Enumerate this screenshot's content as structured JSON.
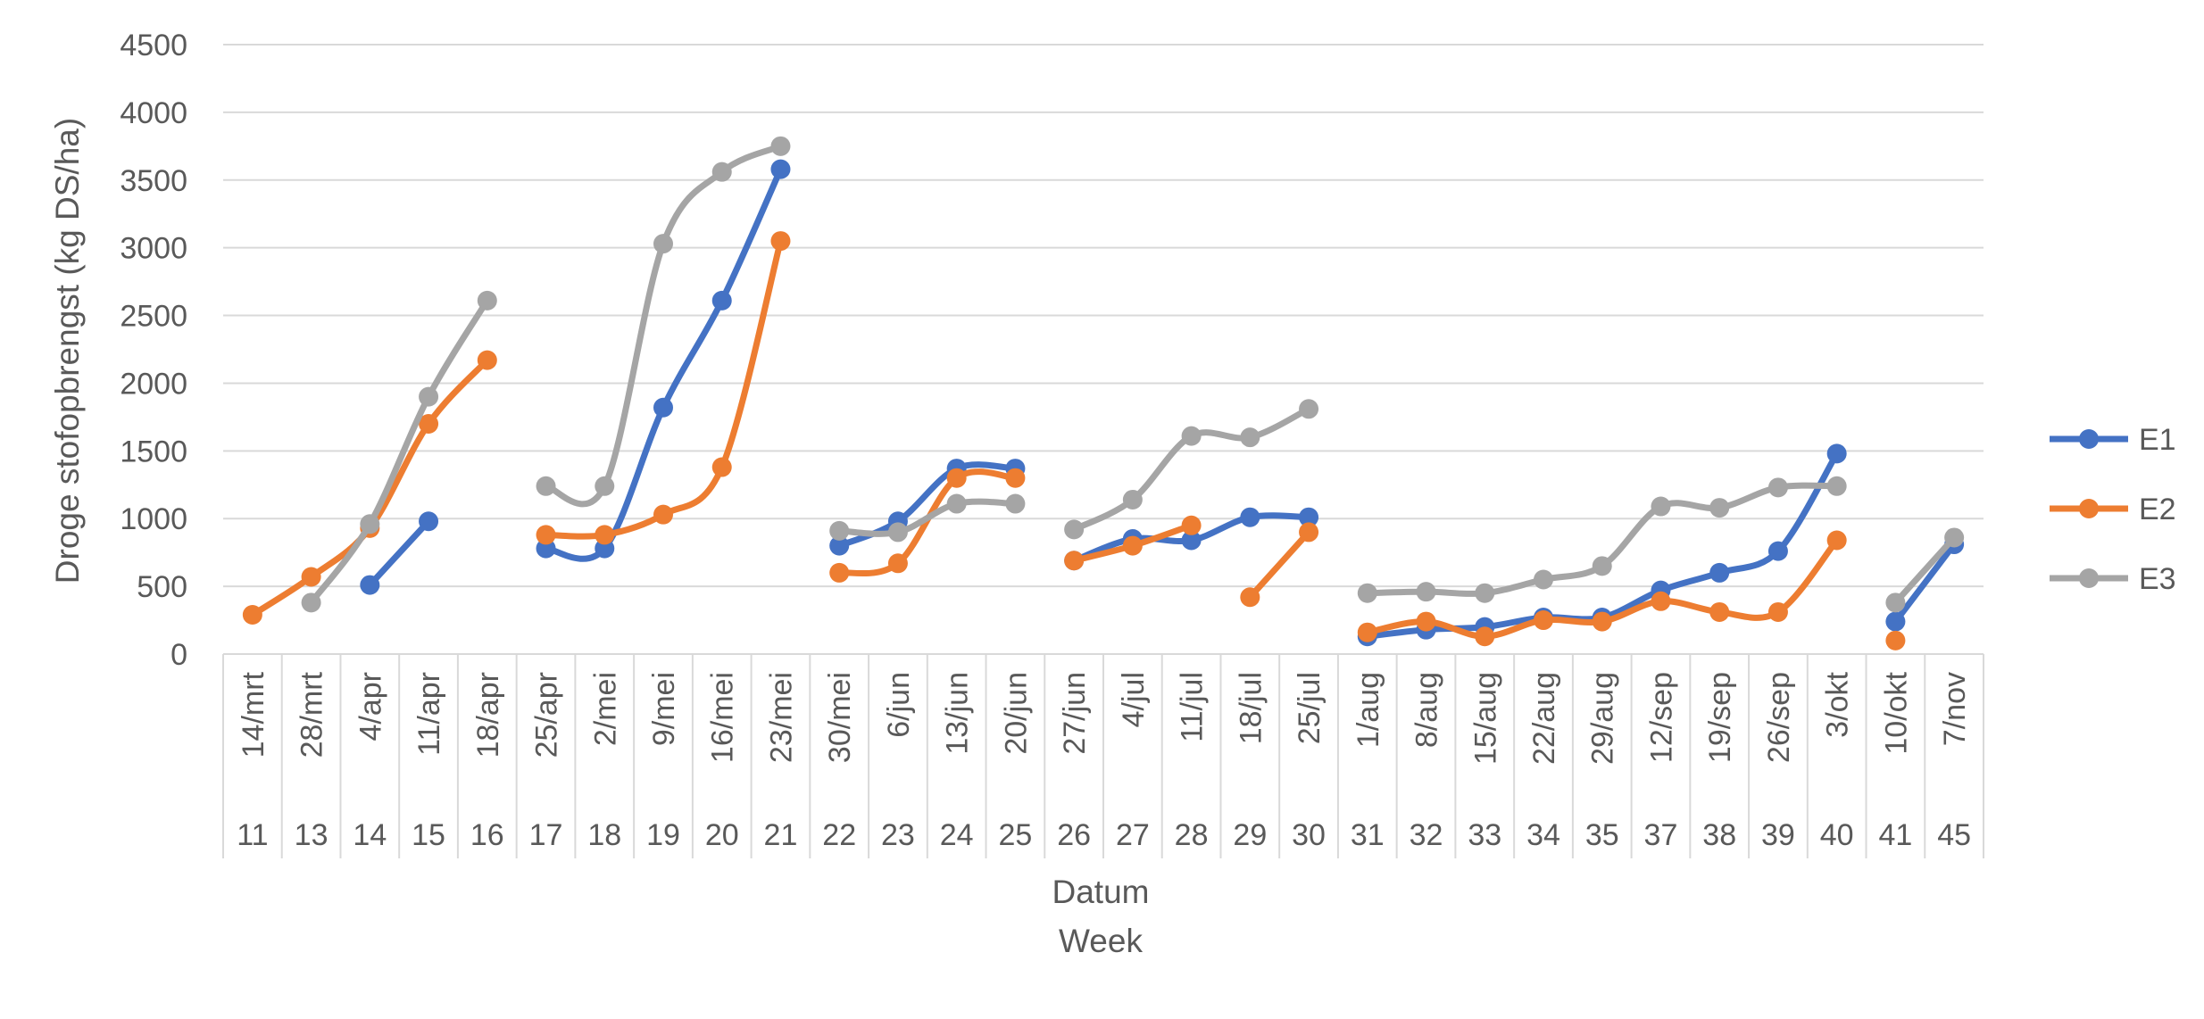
{
  "chart_data": {
    "type": "line",
    "smooth": true,
    "ylabel": "Droge stofopbrengst (kg DS/ha)",
    "xlabel": "Datum",
    "xlabel2": "Week",
    "ylim": [
      0,
      4500
    ],
    "yticks": [
      0,
      500,
      1000,
      1500,
      2000,
      2500,
      3000,
      3500,
      4000,
      4500
    ],
    "grid": true,
    "legend_position": "right",
    "categories": [
      "14/mrt",
      "28/mrt",
      "4/apr",
      "11/apr",
      "18/apr",
      "25/apr",
      "2/mei",
      "9/mei",
      "16/mei",
      "23/mei",
      "30/mei",
      "6/jun",
      "13/jun",
      "20/jun",
      "27/jun",
      "4/jul",
      "11/jul",
      "18/jul",
      "25/jul",
      "1/aug",
      "8/aug",
      "15/aug",
      "22/aug",
      "29/aug",
      "12/sep",
      "19/sep",
      "26/sep",
      "3/okt",
      "10/okt",
      "7/nov"
    ],
    "weeks": [
      "11",
      "13",
      "14",
      "15",
      "16",
      "17",
      "18",
      "19",
      "20",
      "21",
      "22",
      "23",
      "24",
      "25",
      "26",
      "27",
      "28",
      "29",
      "30",
      "31",
      "32",
      "33",
      "34",
      "35",
      "37",
      "38",
      "39",
      "40",
      "41",
      "45"
    ],
    "group_boundaries": [
      0,
      2,
      5,
      10,
      14,
      19,
      28,
      30
    ],
    "series": [
      {
        "name": "E1",
        "color": "#4472C4",
        "values": [
          null,
          null,
          510,
          980,
          null,
          780,
          780,
          1820,
          2610,
          3580,
          800,
          980,
          1370,
          1370,
          690,
          850,
          840,
          1010,
          1010,
          130,
          180,
          200,
          270,
          270,
          470,
          600,
          760,
          1480,
          240,
          810
        ],
        "segments": [
          [
            2,
            3
          ],
          [
            5,
            9
          ],
          [
            10,
            13
          ],
          [
            14,
            18
          ],
          [
            19,
            27
          ],
          [
            28,
            29
          ]
        ]
      },
      {
        "name": "E2",
        "color": "#ED7D31",
        "values": [
          290,
          570,
          930,
          1700,
          2170,
          880,
          880,
          1030,
          1380,
          3050,
          600,
          670,
          1300,
          1300,
          690,
          800,
          950,
          420,
          900,
          160,
          240,
          130,
          250,
          240,
          390,
          310,
          310,
          840,
          100,
          null
        ],
        "segments": [
          [
            0,
            4
          ],
          [
            5,
            9
          ],
          [
            10,
            13
          ],
          [
            14,
            16
          ],
          [
            17,
            18
          ],
          [
            19,
            27
          ],
          [
            28,
            28
          ]
        ]
      },
      {
        "name": "E3",
        "color": "#A5A5A5",
        "values": [
          null,
          380,
          960,
          1900,
          2610,
          1240,
          1240,
          3030,
          3560,
          3750,
          910,
          900,
          1110,
          1110,
          920,
          1140,
          1610,
          1600,
          1810,
          450,
          460,
          450,
          550,
          650,
          1090,
          1080,
          1230,
          1240,
          380,
          860
        ],
        "segments": [
          [
            1,
            4
          ],
          [
            5,
            9
          ],
          [
            10,
            13
          ],
          [
            14,
            18
          ],
          [
            19,
            27
          ],
          [
            28,
            29
          ]
        ]
      }
    ]
  }
}
